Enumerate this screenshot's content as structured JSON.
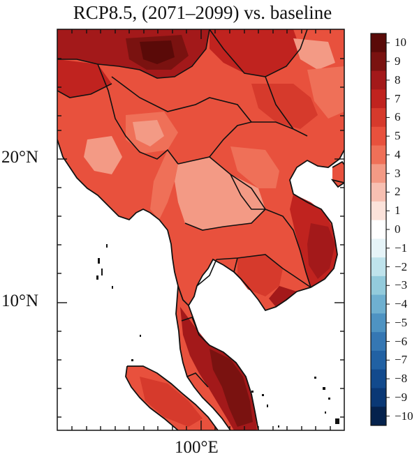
{
  "title": "RCP8.5, (2071–2099) vs. baseline",
  "axes": {
    "y_ticks": [
      {
        "label": "20°N",
        "lat": 20
      },
      {
        "label": "10°N",
        "lat": 10
      }
    ],
    "x_ticks": [
      {
        "label": "100°E",
        "lon": 100
      }
    ]
  },
  "colorbar": {
    "levels": [
      "10",
      "9",
      "8",
      "7",
      "6",
      "5",
      "4",
      "3",
      "2",
      "1",
      "0",
      "−1",
      "−2",
      "−3",
      "−4",
      "−5",
      "−6",
      "−7",
      "−8",
      "−9",
      "−10"
    ],
    "colors": [
      "#5a0a08",
      "#7a1210",
      "#a3191a",
      "#c0231f",
      "#d63a2c",
      "#e8513d",
      "#ef7058",
      "#f39a85",
      "#f7c0b2",
      "#fbe2da",
      "#ffffff",
      "#e6f4f8",
      "#bfe3ec",
      "#93cbdc",
      "#6fb0d0",
      "#4e93c2",
      "#3577b3",
      "#2161a3",
      "#124a8d",
      "#0a3875",
      "#05224d"
    ]
  }
}
